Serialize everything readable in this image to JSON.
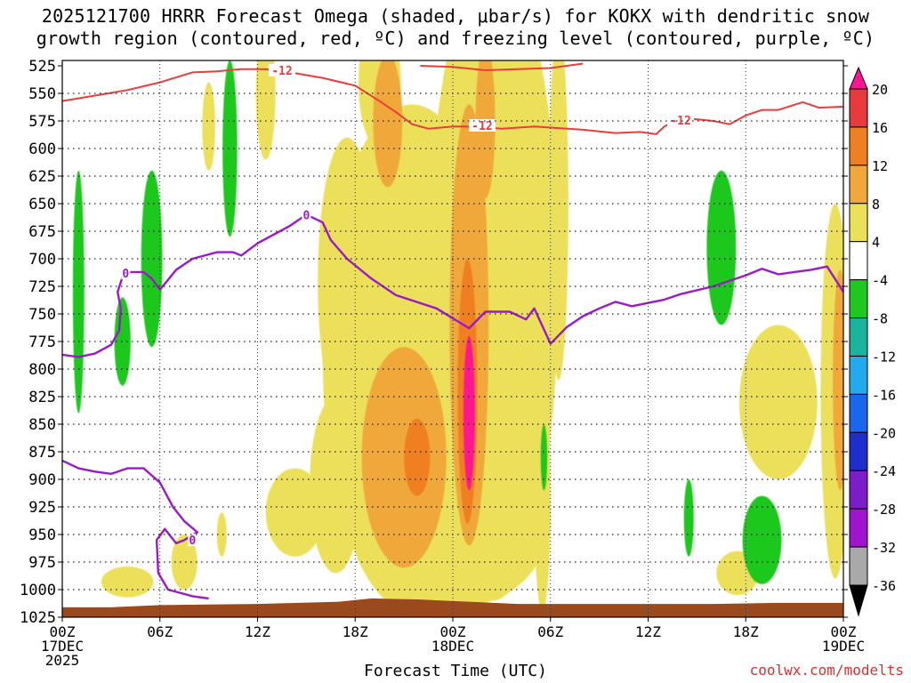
{
  "title_line1": "2025121700 HRRR Forecast Omega (shaded, μbar/s) for KOKX with dendritic snow",
  "title_line2": "growth region (contoured, red, ºC) and freezing level (contoured, purple, ºC)",
  "credit": "coolwx.com/modelts",
  "chart_data": {
    "type": "heatmap",
    "xlabel": "Forecast Time (UTC)",
    "ylabel": "",
    "x_range_hours": [
      0,
      48
    ],
    "y_range_hpa": [
      525,
      1025
    ],
    "pressure_ticks": [
      525,
      550,
      575,
      600,
      625,
      650,
      675,
      700,
      725,
      750,
      775,
      800,
      825,
      850,
      875,
      900,
      925,
      950,
      975,
      1000,
      1025
    ],
    "time_ticks": [
      {
        "hour": 0,
        "lines": [
          "00Z",
          "17DEC",
          "2025"
        ]
      },
      {
        "hour": 6,
        "lines": [
          "06Z"
        ]
      },
      {
        "hour": 12,
        "lines": [
          "12Z"
        ]
      },
      {
        "hour": 18,
        "lines": [
          "18Z"
        ]
      },
      {
        "hour": 24,
        "lines": [
          "00Z",
          "18DEC"
        ]
      },
      {
        "hour": 30,
        "lines": [
          "06Z"
        ]
      },
      {
        "hour": 36,
        "lines": [
          "12Z"
        ]
      },
      {
        "hour": 42,
        "lines": [
          "18Z"
        ]
      },
      {
        "hour": 48,
        "lines": [
          "00Z",
          "19DEC"
        ]
      }
    ],
    "grid": true,
    "colorbar": {
      "labels": [
        "20",
        "16",
        "12",
        "8",
        "4",
        "-4",
        "-8",
        "-12",
        "-16",
        "-20",
        "-24",
        "-28",
        "-32",
        "-36"
      ],
      "colors": [
        "#ff1493",
        "#e8393c",
        "#f07f21",
        "#f0a83a",
        "#ece05a",
        "#ffffff",
        "#1ec81e",
        "#18b49c",
        "#22aaee",
        "#1a66ee",
        "#1e2ecc",
        "#7b1ec8",
        "#a114cf",
        "#a9a9a9",
        "#000000"
      ]
    },
    "omega_blobs": [
      {
        "x": 21.5,
        "p": 790,
        "rx": 5.5,
        "rp": 230,
        "v": 4
      },
      {
        "x": 26.5,
        "p": 720,
        "rx": 4.0,
        "rp": 290,
        "v": 4
      },
      {
        "x": 24.5,
        "p": 935,
        "rx": 5.5,
        "rp": 80,
        "v": 4
      },
      {
        "x": 17.5,
        "p": 720,
        "rx": 1.8,
        "rp": 130,
        "v": 4
      },
      {
        "x": 20.0,
        "p": 640,
        "rx": 1.5,
        "rp": 80,
        "v": 4
      },
      {
        "x": 16.8,
        "p": 905,
        "rx": 1.6,
        "rp": 80,
        "v": 4
      },
      {
        "x": 14.3,
        "p": 930,
        "rx": 1.8,
        "rp": 40,
        "v": 4
      },
      {
        "x": 12.5,
        "p": 550,
        "rx": 0.6,
        "rp": 60,
        "v": 4
      },
      {
        "x": 9.0,
        "p": 580,
        "rx": 0.4,
        "rp": 40,
        "v": 4
      },
      {
        "x": 29.5,
        "p": 920,
        "rx": 0.5,
        "rp": 100,
        "v": 4
      },
      {
        "x": 4.0,
        "p": 993,
        "rx": 1.6,
        "rp": 14,
        "v": 4
      },
      {
        "x": 7.5,
        "p": 975,
        "rx": 0.8,
        "rp": 25,
        "v": 4
      },
      {
        "x": 9.8,
        "p": 950,
        "rx": 0.3,
        "rp": 20,
        "v": 4
      },
      {
        "x": 30.5,
        "p": 650,
        "rx": 0.6,
        "rp": 160,
        "v": 4
      },
      {
        "x": 44.0,
        "p": 830,
        "rx": 2.4,
        "rp": 70,
        "v": 4
      },
      {
        "x": 47.5,
        "p": 820,
        "rx": 0.9,
        "rp": 170,
        "v": 4
      },
      {
        "x": 41.5,
        "p": 985,
        "rx": 1.3,
        "rp": 20,
        "v": 4
      },
      {
        "x": 19.5,
        "p": 540,
        "rx": 1.3,
        "rp": 60,
        "v": 4
      },
      {
        "x": 26.0,
        "p": 575,
        "rx": 0.6,
        "rp": 70,
        "v": 8
      },
      {
        "x": 21.0,
        "p": 880,
        "rx": 2.6,
        "rp": 100,
        "v": 8
      },
      {
        "x": 25.0,
        "p": 760,
        "rx": 1.2,
        "rp": 200,
        "v": 8
      },
      {
        "x": 20.0,
        "p": 575,
        "rx": 0.9,
        "rp": 60,
        "v": 8
      },
      {
        "x": 47.8,
        "p": 810,
        "rx": 0.45,
        "rp": 100,
        "v": 8
      },
      {
        "x": 24.9,
        "p": 820,
        "rx": 0.6,
        "rp": 120,
        "v": 12
      },
      {
        "x": 21.8,
        "p": 880,
        "rx": 0.8,
        "rp": 35,
        "v": 12
      },
      {
        "x": 25.0,
        "p": 840,
        "rx": 0.35,
        "rp": 70,
        "v": 20
      }
    ],
    "omega_neg_blobs": [
      {
        "x": 1.0,
        "p": 730,
        "rx": 0.35,
        "rp": 110,
        "v": -4
      },
      {
        "x": 3.7,
        "p": 775,
        "rx": 0.5,
        "rp": 40,
        "v": -4
      },
      {
        "x": 5.5,
        "p": 700,
        "rx": 0.65,
        "rp": 80,
        "v": -4
      },
      {
        "x": 10.3,
        "p": 600,
        "rx": 0.45,
        "rp": 80,
        "v": -4
      },
      {
        "x": 40.5,
        "p": 690,
        "rx": 0.9,
        "rp": 70,
        "v": -4
      },
      {
        "x": 43.0,
        "p": 955,
        "rx": 1.2,
        "rp": 40,
        "v": -4
      },
      {
        "x": 38.5,
        "p": 935,
        "rx": 0.3,
        "rp": 35,
        "v": -4
      },
      {
        "x": 29.6,
        "p": 880,
        "rx": 0.2,
        "rp": 30,
        "v": -4
      },
      {
        "x": 43.3,
        "p": 958,
        "rx": 0.35,
        "rp": 20,
        "v": -8
      }
    ],
    "freezing_level": [
      [
        0,
        787
      ],
      [
        1,
        789
      ],
      [
        2,
        786
      ],
      [
        3,
        778
      ],
      [
        3.5,
        765
      ],
      [
        3.6,
        745
      ],
      [
        3.4,
        730
      ],
      [
        3.8,
        712
      ],
      [
        5.0,
        712
      ],
      [
        5.5,
        718
      ],
      [
        6.0,
        728
      ],
      [
        7.0,
        710
      ],
      [
        8.0,
        700
      ],
      [
        9.5,
        694
      ],
      [
        10.5,
        694
      ],
      [
        11.0,
        697
      ],
      [
        12.0,
        686
      ],
      [
        13.0,
        678
      ],
      [
        14.0,
        670
      ],
      [
        15.0,
        660
      ],
      [
        16.0,
        667
      ],
      [
        16.5,
        683
      ],
      [
        17.5,
        700
      ],
      [
        19.0,
        718
      ],
      [
        20.5,
        733
      ],
      [
        23.0,
        745
      ],
      [
        25.0,
        763
      ],
      [
        26.0,
        748
      ],
      [
        27.5,
        748
      ],
      [
        28.5,
        755
      ],
      [
        29.0,
        745
      ],
      [
        30.0,
        777
      ],
      [
        31.0,
        762
      ],
      [
        32.0,
        752
      ],
      [
        33.0,
        745
      ],
      [
        34.0,
        739
      ],
      [
        35.0,
        743
      ],
      [
        37.0,
        737
      ],
      [
        38.0,
        732
      ],
      [
        40.0,
        725
      ],
      [
        41.0,
        720
      ],
      [
        42.0,
        715
      ],
      [
        43.0,
        709
      ],
      [
        44.0,
        714
      ],
      [
        46.0,
        710
      ],
      [
        47.0,
        707
      ],
      [
        48.0,
        730
      ]
    ],
    "freezing_level_lower": [
      [
        0,
        883
      ],
      [
        1,
        890
      ],
      [
        2,
        893
      ],
      [
        3,
        895
      ],
      [
        4,
        890
      ],
      [
        5,
        890
      ],
      [
        6,
        903
      ],
      [
        6.8,
        925
      ],
      [
        7.5,
        938
      ],
      [
        8.3,
        948
      ],
      [
        7.5,
        955
      ],
      [
        7.0,
        958
      ],
      [
        6.3,
        945
      ],
      [
        5.8,
        955
      ],
      [
        5.9,
        985
      ],
      [
        6.5,
        1000
      ],
      [
        8.0,
        1006
      ],
      [
        9.0,
        1008
      ]
    ],
    "freezing_level_labels": [
      {
        "x": 3.9,
        "p": 713,
        "text": "0"
      },
      {
        "x": 15.0,
        "p": 660,
        "text": "0"
      },
      {
        "x": 8.0,
        "p": 955,
        "text": "0"
      }
    ],
    "dgz_minus12": [
      [
        0,
        557
      ],
      [
        2,
        552
      ],
      [
        4,
        547
      ],
      [
        6,
        540
      ],
      [
        8,
        531
      ],
      [
        9.5,
        530
      ],
      [
        11,
        528
      ],
      [
        12.5,
        528
      ],
      [
        14,
        531
      ],
      [
        16,
        536
      ],
      [
        18,
        543
      ],
      [
        19.5,
        557
      ],
      [
        20.5,
        567
      ],
      [
        21.5,
        578
      ],
      [
        22.5,
        582
      ],
      [
        24,
        580
      ],
      [
        25.5,
        580
      ],
      [
        27,
        582
      ],
      [
        29,
        580
      ],
      [
        32,
        583
      ],
      [
        34,
        586
      ],
      [
        35.5,
        585
      ],
      [
        36.5,
        587
      ],
      [
        37,
        580
      ],
      [
        38,
        572
      ],
      [
        40,
        575
      ],
      [
        41,
        578
      ],
      [
        42,
        570
      ],
      [
        43,
        565
      ],
      [
        44,
        565
      ],
      [
        45.5,
        558
      ],
      [
        46.5,
        563
      ],
      [
        48,
        562
      ]
    ],
    "dgz_top": [
      [
        22,
        525
      ],
      [
        24,
        526
      ],
      [
        26,
        529
      ],
      [
        28,
        528
      ],
      [
        30,
        527
      ],
      [
        32,
        523
      ]
    ],
    "dgz_labels": [
      {
        "x": 13.5,
        "p": 529,
        "text": "-12"
      },
      {
        "x": 25.8,
        "p": 579,
        "text": "-12"
      },
      {
        "x": 38.0,
        "p": 574,
        "text": "-12"
      }
    ],
    "terrain_top_hpa": [
      [
        0,
        1016
      ],
      [
        3,
        1016
      ],
      [
        6,
        1014
      ],
      [
        12,
        1013
      ],
      [
        17,
        1011
      ],
      [
        19,
        1008
      ],
      [
        22,
        1009
      ],
      [
        25,
        1011
      ],
      [
        28,
        1013
      ],
      [
        32,
        1013
      ],
      [
        40,
        1013
      ],
      [
        44,
        1012
      ],
      [
        48,
        1012
      ]
    ]
  }
}
